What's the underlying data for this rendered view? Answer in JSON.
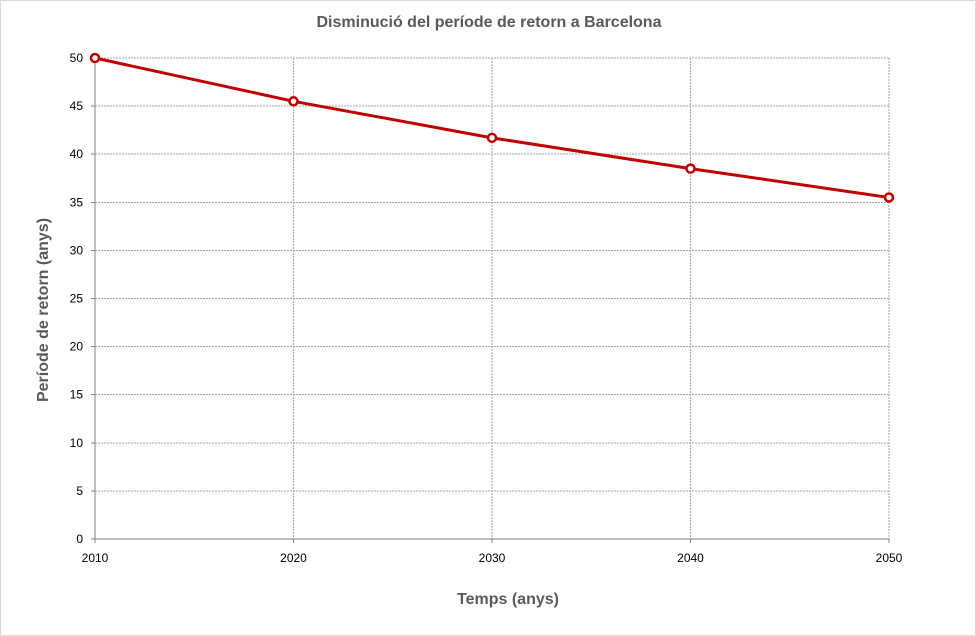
{
  "chart_data": {
    "type": "line",
    "title": "Disminució del període de retorn a Barcelona",
    "xlabel": "Temps (anys)",
    "ylabel": "Període de retorn (anys)",
    "x": [
      2010,
      2020,
      2030,
      2040,
      2050
    ],
    "xlim": [
      2010,
      2050
    ],
    "ylim": [
      0,
      50
    ],
    "yticks": [
      0,
      5,
      10,
      15,
      20,
      25,
      30,
      35,
      40,
      45,
      50
    ],
    "grid": true,
    "legend": "none",
    "series": [
      {
        "values": [
          50,
          45.5,
          41.7,
          38.5,
          35.5
        ],
        "color": "#c00000",
        "marker": "open-circle"
      }
    ]
  }
}
